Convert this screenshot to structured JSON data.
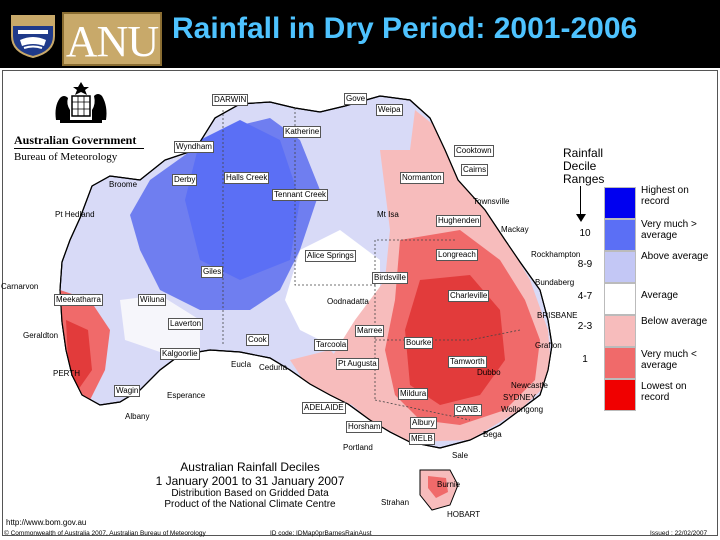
{
  "header": {
    "logo_text": "ANU",
    "title": "Rainfall in Dry Period: 2001-2006"
  },
  "agency": {
    "line1": "Australian Government",
    "line2": "Bureau of Meteorology"
  },
  "legend": {
    "title_lines": [
      "Rainfall",
      "Decile",
      "Ranges"
    ],
    "items": [
      {
        "label": "Highest on record",
        "color": "#0000f0",
        "decile": ""
      },
      {
        "label": "Very much > average",
        "color": "#5b6ff5",
        "decile": "10"
      },
      {
        "label": "Above average",
        "color": "#c3c7f5",
        "decile": "8-9"
      },
      {
        "label": "Average",
        "color": "#ffffff",
        "decile": "4-7"
      },
      {
        "label": "Below average",
        "color": "#f7bcbc",
        "decile": "2-3"
      },
      {
        "label": "Very much < average",
        "color": "#f06a6a",
        "decile": "1"
      },
      {
        "label": "Lowest on record",
        "color": "#f00000",
        "decile": ""
      }
    ]
  },
  "places": {
    "darwin": "DARWIN",
    "gove": "Gove",
    "weipa": "Weipa",
    "katherine": "Katherine",
    "wyndham": "Wyndham",
    "cooktown": "Cooktown",
    "cairns": "Cairns",
    "normanton": "Normanton",
    "broome": "Broome",
    "derby": "Derby",
    "halls_creek": "Halls Creek",
    "tennant_creek": "Tennant Creek",
    "townsville": "Townsville",
    "pt_hedland": "Pt Hedland",
    "mt_isa": "Mt Isa",
    "hughenden": "Hughenden",
    "mackay": "Mackay",
    "longreach": "Longreach",
    "rockhampton": "Rockhampton",
    "alice_springs": "Alice Springs",
    "giles": "Giles",
    "birdsville": "Birdsville",
    "carnarvon": "Carnarvon",
    "bundaberg": "Bundaberg",
    "meekatharra": "Meekatharra",
    "wiluna": "Wiluna",
    "charleville": "Charleville",
    "oodnadatta": "Oodnadatta",
    "brisbane": "BRISBANE",
    "laverton": "Laverton",
    "marree": "Marree",
    "geraldton": "Geraldton",
    "bourke": "Bourke",
    "cook": "Cook",
    "tarcoola": "Tarcoola",
    "grafton": "Grafton",
    "kalgoorlie": "Kalgoorlie",
    "pt_augusta": "Pt Augusta",
    "tamworth": "Tamworth",
    "eucla": "Eucla",
    "ceduna": "Ceduna",
    "perth": "PERTH",
    "dubbo": "Dubbo",
    "newcastle": "Newcastle",
    "wagin": "Wagin",
    "esperance": "Esperance",
    "mildura": "Mildura",
    "sydney": "SYDNEY",
    "wollongong": "Wollongong",
    "adelaide": "ADELAIDE",
    "canb": "CANB.",
    "albany": "Albany",
    "horsham": "Horsham",
    "albury": "Albury",
    "bega": "Bega",
    "melb": "MELB",
    "portland": "Portland",
    "sale": "Sale",
    "burnie": "Burnie",
    "strahan": "Strahan",
    "hobart": "HOBART"
  },
  "caption": {
    "heading": "Australian Rainfall Deciles",
    "dates": "1 January 2001 to 31 January 2007",
    "line3": "Distribution Based on Gridded Data",
    "line4": "Product of the National Climate Centre"
  },
  "footer": {
    "url": "http://www.bom.gov.au",
    "copyright": "© Commonwealth of Australia 2007, Australian Bureau of Meteorology",
    "id_code": "ID code: IDMap0prBarnesRainAust",
    "issued": "Issued : 22/02/2007"
  }
}
